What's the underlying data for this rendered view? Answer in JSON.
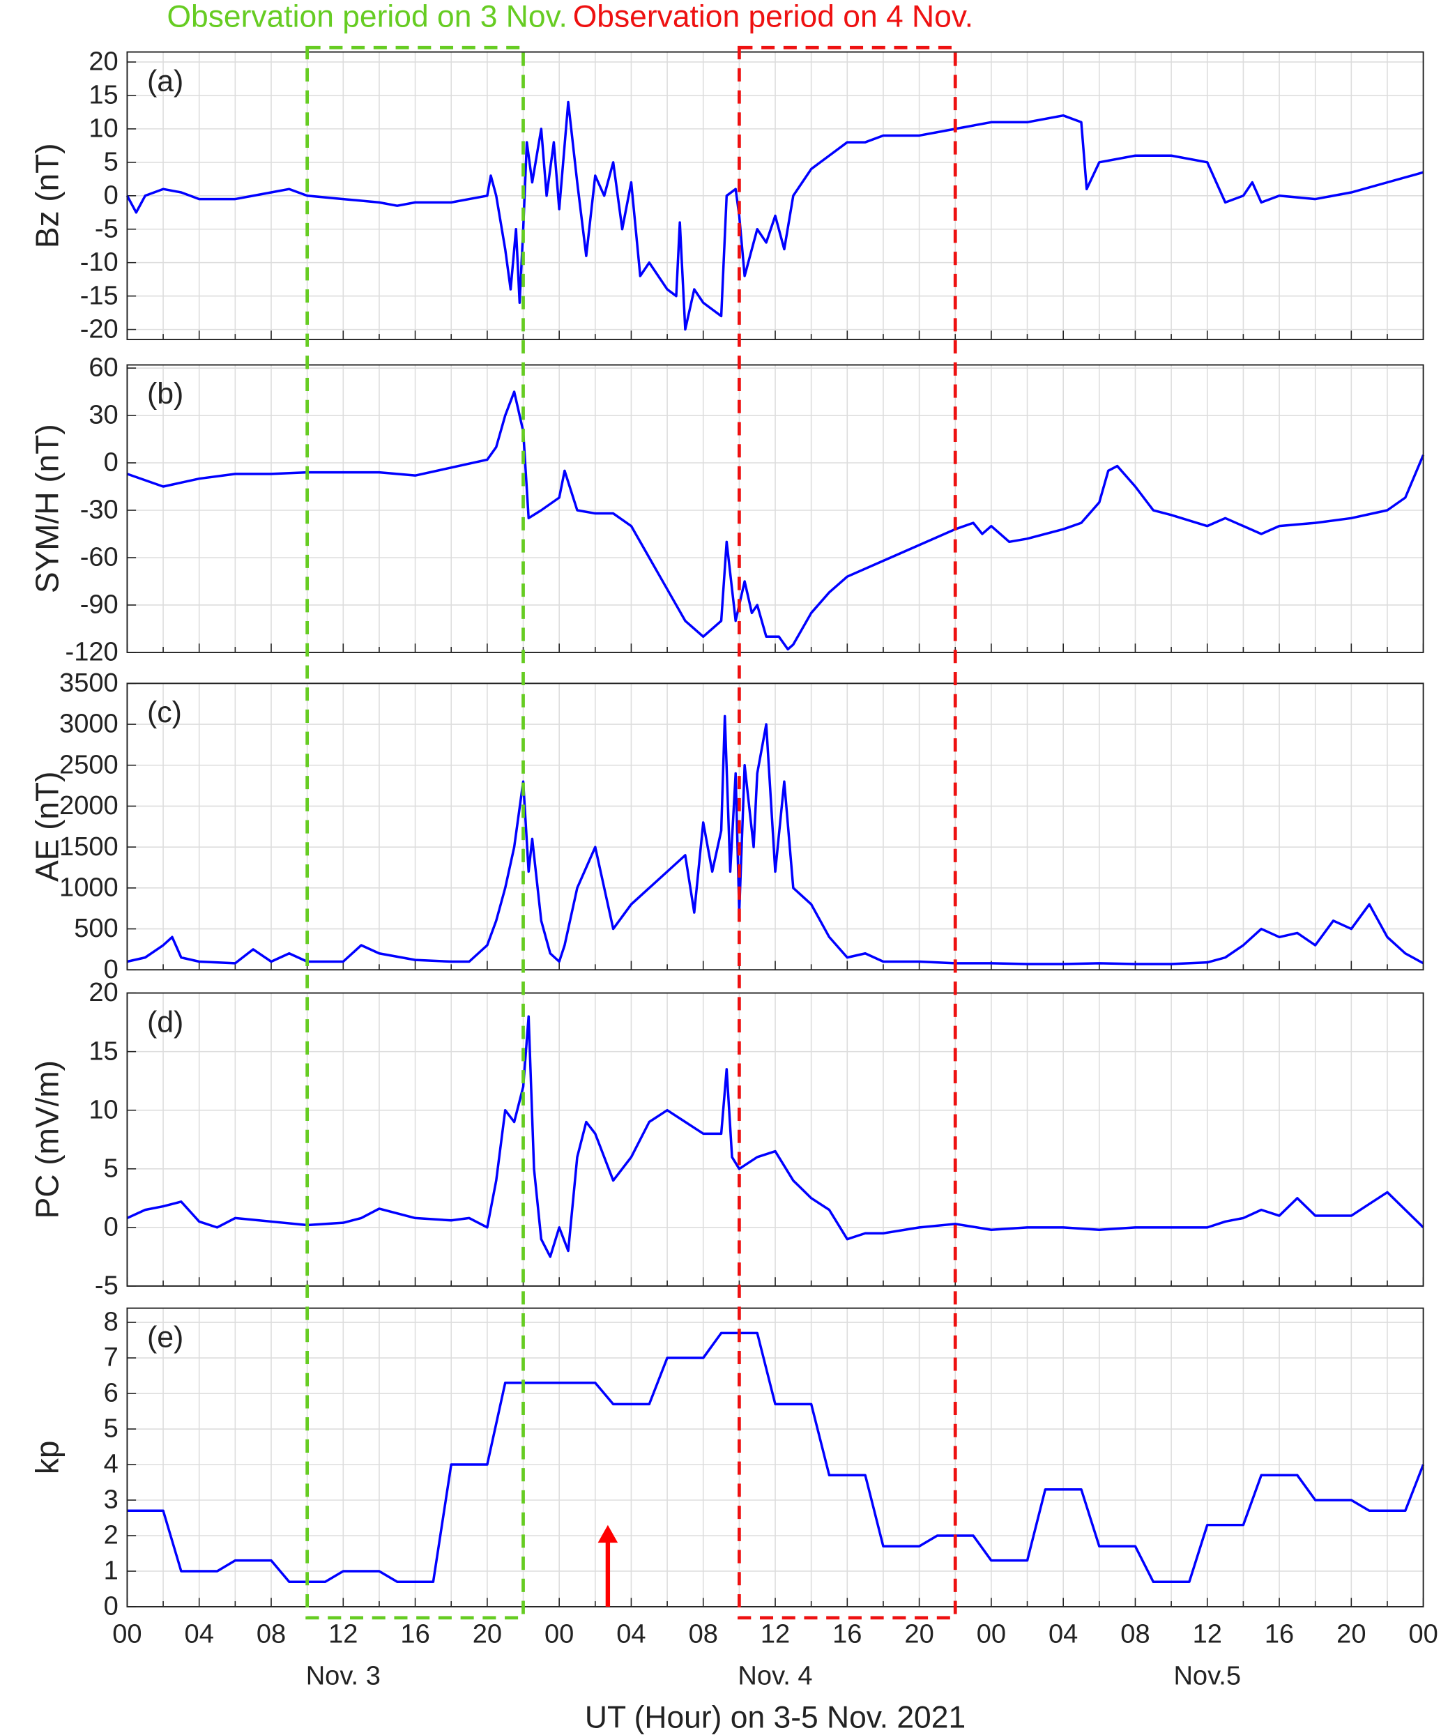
{
  "chart_data": [
    {
      "type": "line",
      "panel_label": "(a)",
      "ylabel": "Bz (nT)",
      "color": "#0000ff",
      "ylim": [
        -21.5,
        21.5
      ],
      "yticks": [
        -20,
        -15,
        -10,
        -5,
        0,
        5,
        10,
        15,
        20
      ],
      "grid": true,
      "x": [
        0,
        0.5,
        1,
        2,
        3,
        4,
        6,
        8,
        9,
        10,
        12,
        14,
        15,
        16,
        18,
        19,
        20,
        20.2,
        20.5,
        21,
        21.3,
        21.6,
        21.8,
        22,
        22.2,
        22.5,
        23,
        23.3,
        23.7,
        24,
        24.5,
        25,
        25.5,
        26,
        26.5,
        27,
        27.5,
        28,
        28.5,
        29,
        29.5,
        30,
        30.5,
        30.7,
        31,
        31.5,
        32,
        32.5,
        33,
        33.3,
        33.8,
        34,
        34.3,
        35,
        35.5,
        36,
        36.5,
        37,
        38,
        39,
        40,
        41,
        42,
        44,
        46,
        48,
        50,
        52,
        53,
        53.3,
        54,
        56,
        58,
        60,
        60.5,
        61,
        62,
        62.5,
        63,
        64,
        66,
        68,
        70,
        72
      ],
      "values": [
        0,
        -2.5,
        0,
        1,
        0.5,
        -0.5,
        -0.5,
        0.5,
        1,
        0,
        -0.5,
        -1,
        -1.5,
        -1,
        -1,
        -0.5,
        0,
        3,
        0,
        -8,
        -14,
        -5,
        -16,
        -5,
        8,
        2,
        10,
        0,
        8,
        -2,
        14,
        2,
        -9,
        3,
        0,
        5,
        -5,
        2,
        -12,
        -10,
        -12,
        -14,
        -15,
        -4,
        -20,
        -14,
        -16,
        -17,
        -18,
        0,
        1,
        -3,
        -12,
        -5,
        -7,
        -3,
        -8,
        0,
        4,
        6,
        8,
        8,
        9,
        9,
        10,
        11,
        11,
        12,
        11,
        1,
        5,
        6,
        6,
        5,
        2,
        -1,
        0,
        2,
        -1,
        0,
        -0.5,
        0.5,
        2,
        3.5
      ]
    },
    {
      "type": "line",
      "panel_label": "(b)",
      "ylabel": "SYM/H (nT)",
      "color": "#0000ff",
      "ylim": [
        -120,
        62
      ],
      "yticks": [
        -120,
        -90,
        -60,
        -30,
        0,
        30,
        60
      ],
      "grid": true,
      "x": [
        0,
        2,
        4,
        6,
        8,
        10,
        12,
        14,
        16,
        18,
        20,
        20.5,
        21,
        21.5,
        22,
        22.3,
        23,
        24,
        24.3,
        25,
        26,
        27,
        28,
        29,
        30,
        31,
        32,
        33,
        33.3,
        33.8,
        34.3,
        34.7,
        35,
        35.5,
        36.2,
        36.7,
        37,
        38,
        39,
        40,
        42,
        44,
        46,
        47,
        47.5,
        48,
        49,
        50,
        52,
        53,
        54,
        54.5,
        55,
        56,
        57,
        58,
        60,
        61,
        62,
        63,
        64,
        66,
        68,
        70,
        71,
        72
      ],
      "values": [
        -7,
        -15,
        -10,
        -7,
        -7,
        -6,
        -6,
        -6,
        -8,
        -3,
        2,
        10,
        30,
        45,
        20,
        -35,
        -30,
        -22,
        -5,
        -30,
        -32,
        -32,
        -40,
        -60,
        -80,
        -100,
        -110,
        -100,
        -50,
        -100,
        -75,
        -95,
        -90,
        -110,
        -110,
        -118,
        -115,
        -95,
        -82,
        -72,
        -62,
        -52,
        -42,
        -38,
        -45,
        -40,
        -50,
        -48,
        -42,
        -38,
        -25,
        -5,
        -2,
        -15,
        -30,
        -33,
        -40,
        -35,
        -40,
        -45,
        -40,
        -38,
        -35,
        -30,
        -22,
        5
      ]
    },
    {
      "type": "line",
      "panel_label": "(c)",
      "ylabel": "AE (nT)",
      "color": "#0000ff",
      "ylim": [
        0,
        3500
      ],
      "yticks": [
        0,
        500,
        1000,
        1500,
        2000,
        2500,
        3000,
        3500
      ],
      "grid": true,
      "x": [
        0,
        1,
        2,
        2.5,
        3,
        4,
        6,
        7,
        8,
        9,
        10,
        12,
        13,
        14,
        16,
        18,
        19,
        20,
        20.5,
        21,
        21.5,
        22,
        22.3,
        22.5,
        23,
        23.5,
        24,
        24.3,
        25,
        26,
        26.5,
        27,
        28,
        29,
        30,
        31,
        31.5,
        32,
        32.5,
        33,
        33.2,
        33.5,
        33.8,
        34,
        34.3,
        34.8,
        35,
        35.5,
        36,
        36.5,
        37,
        38,
        39,
        40,
        41,
        42,
        44,
        46,
        48,
        50,
        52,
        54,
        56,
        58,
        60,
        61,
        62,
        63,
        64,
        65,
        66,
        67,
        68,
        69,
        70,
        71,
        72
      ],
      "values": [
        100,
        150,
        300,
        400,
        150,
        100,
        80,
        250,
        100,
        200,
        100,
        100,
        300,
        200,
        120,
        100,
        100,
        300,
        600,
        1000,
        1500,
        2300,
        1200,
        1600,
        600,
        200,
        100,
        300,
        1000,
        1500,
        1000,
        500,
        800,
        1000,
        1200,
        1400,
        700,
        1800,
        1200,
        1700,
        3100,
        1200,
        2400,
        700,
        2500,
        1500,
        2400,
        3000,
        1200,
        2300,
        1000,
        800,
        400,
        150,
        200,
        100,
        100,
        80,
        80,
        70,
        70,
        80,
        70,
        70,
        90,
        150,
        300,
        500,
        400,
        450,
        300,
        600,
        500,
        800,
        400,
        200,
        80
      ]
    },
    {
      "type": "line",
      "panel_label": "(d)",
      "ylabel": "PC (mV/m)",
      "color": "#0000ff",
      "ylim": [
        -5,
        20
      ],
      "yticks": [
        -5,
        0,
        5,
        10,
        15,
        20
      ],
      "grid": true,
      "x": [
        0,
        1,
        2,
        3,
        4,
        5,
        6,
        8,
        10,
        12,
        13,
        14,
        15,
        16,
        18,
        19,
        20,
        20.5,
        21,
        21.5,
        22,
        22.3,
        22.6,
        23,
        23.5,
        24,
        24.5,
        25,
        25.5,
        26,
        27,
        28,
        29,
        30,
        31,
        32,
        33,
        33.3,
        33.6,
        34,
        35,
        36,
        37,
        38,
        39,
        40,
        41,
        42,
        44,
        46,
        48,
        50,
        52,
        54,
        56,
        58,
        60,
        61,
        62,
        63,
        64,
        65,
        66,
        68,
        69,
        70,
        71,
        72
      ],
      "values": [
        0.8,
        1.5,
        1.8,
        2.2,
        0.5,
        0,
        0.8,
        0.5,
        0.2,
        0.4,
        0.8,
        1.6,
        1.2,
        0.8,
        0.6,
        0.8,
        0,
        4,
        10,
        9,
        12,
        18,
        5,
        -1,
        -2.5,
        0,
        -2,
        6,
        9,
        8,
        4,
        6,
        9,
        10,
        9,
        8,
        8,
        13.5,
        6,
        5,
        6,
        6.5,
        4,
        2.5,
        1.5,
        -1,
        -0.5,
        -0.5,
        0,
        0.3,
        -0.2,
        0,
        0,
        -0.2,
        0,
        0,
        0,
        0.5,
        0.8,
        1.5,
        1,
        2.5,
        1,
        1,
        2,
        3,
        1.5,
        0
      ]
    },
    {
      "type": "line",
      "panel_label": "(e)",
      "ylabel": "kp",
      "color": "#0000ff",
      "ylim": [
        0,
        8.4
      ],
      "yticks": [
        0,
        1,
        2,
        3,
        4,
        5,
        6,
        7,
        8
      ],
      "grid": true,
      "x": [
        0,
        2,
        3,
        5,
        6,
        8,
        9,
        11,
        12,
        14,
        15,
        17,
        18,
        20,
        21,
        23,
        24,
        26,
        27,
        29,
        30,
        32,
        33,
        35,
        36,
        38,
        39,
        41,
        42,
        44,
        45,
        47,
        48,
        50,
        51,
        53,
        54,
        56,
        57,
        59,
        60,
        62,
        63,
        65,
        66,
        68,
        69,
        71,
        72
      ],
      "values": [
        2.7,
        2.7,
        1,
        1,
        1.3,
        1.3,
        0.7,
        0.7,
        1,
        1,
        0.7,
        0.7,
        4,
        4,
        6.3,
        6.3,
        6.3,
        6.3,
        5.7,
        5.7,
        7,
        7,
        7.7,
        7.7,
        5.7,
        5.7,
        3.7,
        3.7,
        1.7,
        1.7,
        2,
        2,
        1.3,
        1.3,
        3.3,
        3.3,
        1.7,
        1.7,
        0.7,
        0.7,
        2.3,
        2.3,
        3.7,
        3.7,
        3,
        3,
        2.7,
        2.7,
        4
      ],
      "xlim": [
        0,
        72
      ],
      "xticks": [
        {
          "value": 0,
          "label": "00"
        },
        {
          "value": 4,
          "label": "04"
        },
        {
          "value": 8,
          "label": "08"
        },
        {
          "value": 12,
          "label": "12"
        },
        {
          "value": 16,
          "label": "16"
        },
        {
          "value": 20,
          "label": "20"
        },
        {
          "value": 24,
          "label": "00"
        },
        {
          "value": 28,
          "label": "04"
        },
        {
          "value": 32,
          "label": "08"
        },
        {
          "value": 36,
          "label": "12"
        },
        {
          "value": 40,
          "label": "16"
        },
        {
          "value": 44,
          "label": "20"
        },
        {
          "value": 48,
          "label": "00"
        },
        {
          "value": 52,
          "label": "04"
        },
        {
          "value": 56,
          "label": "08"
        },
        {
          "value": 60,
          "label": "12"
        },
        {
          "value": 64,
          "label": "16"
        },
        {
          "value": 68,
          "label": "20"
        },
        {
          "value": 72,
          "label": "00"
        }
      ],
      "xlabel": "UT (Hour) on 3-5 Nov. 2021",
      "day_labels": [
        {
          "text": "Nov. 3",
          "x": 12
        },
        {
          "text": "Nov. 4",
          "x": 36
        },
        {
          "text": "Nov.5",
          "x": 60
        }
      ],
      "arrow": {
        "x": 26.7,
        "y": [
          0,
          2.3
        ],
        "color": "#ff0000"
      }
    }
  ],
  "annotations": [
    {
      "text": "Observation period on 3 Nov.",
      "color": "#66cc22",
      "x": [
        10,
        22
      ]
    },
    {
      "text": "Observation period on 4 Nov.",
      "color": "#ee1111",
      "x": [
        34,
        46
      ]
    }
  ]
}
